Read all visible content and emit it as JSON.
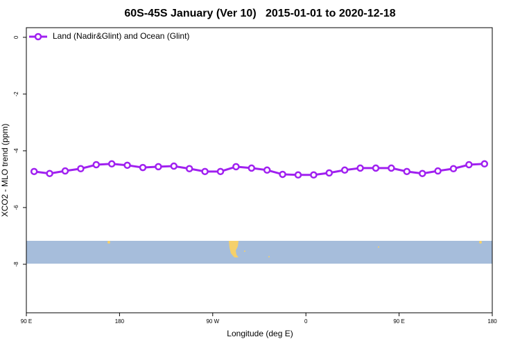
{
  "chart_data": {
    "type": "line",
    "title": "60S-45S January (Ver 10)   2015-01-01 to 2020-12-18",
    "x_label": "Longitude (deg E)",
    "y_label": "XCO2 - MLO trend (ppm)",
    "x": [
      97.5,
      112.5,
      127.5,
      142.5,
      157.5,
      172.5,
      187.5,
      202.5,
      217.5,
      232.5,
      247.5,
      262.5,
      277.5,
      292.5,
      307.5,
      322.5,
      337.5,
      352.5,
      367.5,
      382.5,
      397.5,
      412.5,
      427.5,
      442.5,
      457.5,
      472.5,
      487.5,
      502.5,
      517.5,
      532.5
    ],
    "series": [
      {
        "name": "Land (Nadir&Glint) and Ocean (Glint)",
        "color": "#a020f0",
        "values": [
          -4.73,
          -4.8,
          -4.71,
          -4.63,
          -4.49,
          -4.46,
          -4.51,
          -4.59,
          -4.56,
          -4.54,
          -4.63,
          -4.73,
          -4.73,
          -4.56,
          -4.61,
          -4.68,
          -4.83,
          -4.85,
          -4.85,
          -4.78,
          -4.68,
          -4.61,
          -4.61,
          -4.61,
          -4.73,
          -4.8,
          -4.71,
          -4.63,
          -4.49,
          -4.46
        ]
      }
    ],
    "xlim": [
      90,
      540
    ],
    "xticks": [
      {
        "value": 90,
        "label": "90 E"
      },
      {
        "value": 180,
        "label": "180"
      },
      {
        "value": 270,
        "label": "90 W"
      },
      {
        "value": 360,
        "label": "0"
      },
      {
        "value": 450,
        "label": "90 E"
      },
      {
        "value": 540,
        "label": "180"
      }
    ],
    "ylim": [
      -9.71,
      0.34
    ],
    "yticks": [
      0,
      -2,
      -4,
      -6,
      -8
    ],
    "legend": "top-left"
  }
}
